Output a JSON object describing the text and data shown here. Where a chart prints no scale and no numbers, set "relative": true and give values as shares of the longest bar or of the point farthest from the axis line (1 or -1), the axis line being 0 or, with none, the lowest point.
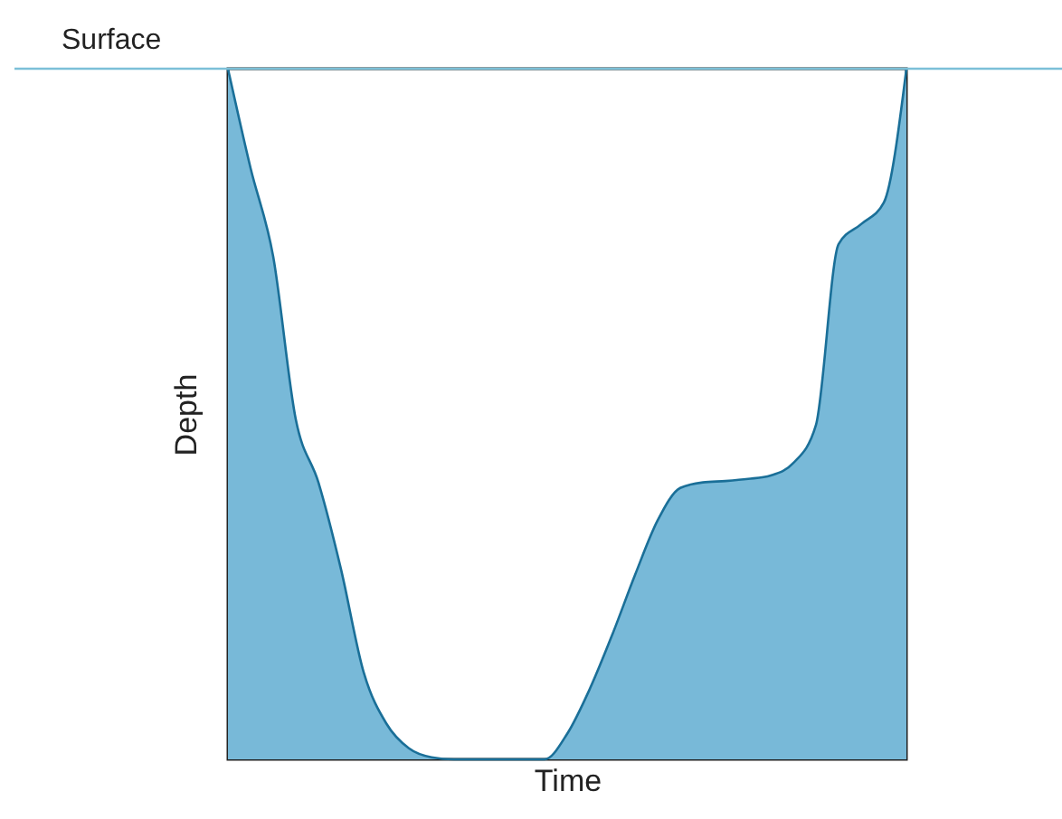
{
  "chart_data": {
    "type": "area",
    "xlabel": "Time",
    "ylabel": "Depth",
    "relative": true,
    "tick_labels": false,
    "grid": false,
    "categories": [
      null,
      null,
      null,
      null,
      null,
      null,
      null,
      null,
      null,
      null,
      null,
      null,
      null,
      null,
      null,
      null,
      null,
      null,
      null,
      null,
      null,
      null,
      null,
      null,
      null,
      null,
      null,
      null,
      null,
      null,
      null
    ],
    "series": [
      {
        "color": "#78b9d8",
        "values": [
          1.0,
          0.856,
          0.728,
          0.492,
          0.401,
          0.275,
          0.126,
          0.052,
          0.016,
          0.003,
          0,
          0,
          0,
          0,
          0,
          0.037,
          0.102,
          0.181,
          0.267,
          0.346,
          0.393,
          0.401,
          0.403,
          0.406,
          0.411,
          0.429,
          0.484,
          0.746,
          0.775,
          0.806,
          1.0
        ]
      }
    ],
    "ref_lines": [
      {
        "axis": "y",
        "value": 1,
        "label": "Surface",
        "color": "#7cc0d8"
      }
    ]
  }
}
